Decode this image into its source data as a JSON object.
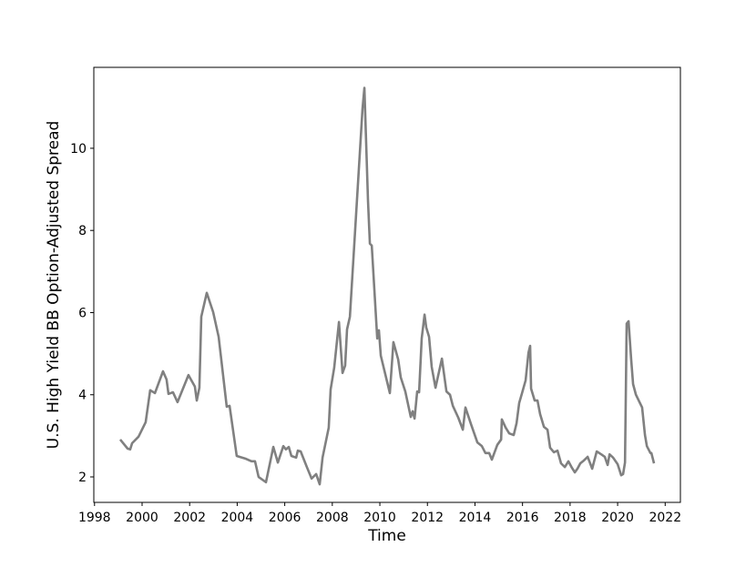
{
  "chart_data": {
    "type": "line",
    "x_label": "Time",
    "y_label": "U.S. High Yield BB Option-Adjusted Spread",
    "color": "#808080",
    "xlim": [
      1997.97,
      2022.64
    ],
    "ylim": [
      1.38,
      11.97
    ],
    "xticks": [
      1998,
      2000,
      2002,
      2004,
      2006,
      2008,
      2010,
      2012,
      2014,
      2016,
      2018,
      2020,
      2022
    ],
    "yticks": [
      2,
      4,
      6,
      8,
      10
    ],
    "x": [
      1999.08,
      1999.39,
      1999.5,
      1999.58,
      1999.85,
      2000.15,
      2000.34,
      2000.54,
      2000.88,
      2001.03,
      2001.11,
      2001.3,
      2001.49,
      2001.95,
      2002.22,
      2002.3,
      2002.41,
      2002.49,
      2002.72,
      2002.99,
      2003.22,
      2003.56,
      2003.68,
      2003.98,
      2004.37,
      2004.6,
      2004.75,
      2004.9,
      2005.21,
      2005.52,
      2005.71,
      2005.94,
      2006.05,
      2006.17,
      2006.28,
      2006.48,
      2006.55,
      2006.67,
      2006.93,
      2007.13,
      2007.32,
      2007.47,
      2007.59,
      2007.85,
      2007.93,
      2008.08,
      2008.28,
      2008.43,
      2008.54,
      2008.62,
      2008.74,
      2009.27,
      2009.35,
      2009.5,
      2009.58,
      2009.66,
      2009.89,
      2009.96,
      2010.04,
      2010.42,
      2010.57,
      2010.77,
      2010.88,
      2011.07,
      2011.3,
      2011.38,
      2011.46,
      2011.57,
      2011.65,
      2011.76,
      2011.88,
      2011.95,
      2012.07,
      2012.18,
      2012.34,
      2012.45,
      2012.61,
      2012.8,
      2012.95,
      2013.07,
      2013.3,
      2013.49,
      2013.6,
      2013.83,
      2013.95,
      2014.1,
      2014.29,
      2014.44,
      2014.6,
      2014.71,
      2014.94,
      2015.1,
      2015.13,
      2015.29,
      2015.44,
      2015.63,
      2015.75,
      2015.86,
      2015.98,
      2016.13,
      2016.25,
      2016.32,
      2016.36,
      2016.51,
      2016.63,
      2016.74,
      2016.9,
      2017.05,
      2017.16,
      2017.32,
      2017.47,
      2017.62,
      2017.78,
      2017.93,
      2018.08,
      2018.2,
      2018.31,
      2018.43,
      2018.58,
      2018.74,
      2018.93,
      2019.12,
      2019.31,
      2019.46,
      2019.58,
      2019.66,
      2019.81,
      2020.0,
      2020.15,
      2020.23,
      2020.31,
      2020.38,
      2020.46,
      2020.57,
      2020.65,
      2020.77,
      2020.92,
      2021.03,
      2021.15,
      2021.23,
      2021.38,
      2021.42,
      2021.53
    ],
    "values": [
      2.91,
      2.69,
      2.67,
      2.82,
      2.98,
      3.33,
      4.11,
      4.04,
      4.57,
      4.37,
      4.02,
      4.06,
      3.82,
      4.48,
      4.2,
      3.86,
      4.17,
      5.9,
      6.48,
      6.01,
      5.41,
      3.71,
      3.73,
      2.51,
      2.44,
      2.38,
      2.38,
      2.0,
      1.87,
      2.73,
      2.35,
      2.75,
      2.67,
      2.73,
      2.51,
      2.47,
      2.64,
      2.62,
      2.24,
      1.96,
      2.07,
      1.82,
      2.47,
      3.2,
      4.13,
      4.66,
      5.77,
      4.53,
      4.71,
      5.59,
      5.9,
      10.96,
      11.47,
      8.74,
      7.68,
      7.63,
      5.37,
      5.57,
      4.95,
      4.04,
      5.28,
      4.86,
      4.42,
      4.08,
      3.46,
      3.6,
      3.42,
      4.08,
      4.06,
      5.37,
      5.95,
      5.64,
      5.41,
      4.68,
      4.17,
      4.46,
      4.88,
      4.08,
      4.0,
      3.73,
      3.44,
      3.15,
      3.69,
      3.29,
      3.09,
      2.84,
      2.75,
      2.58,
      2.58,
      2.42,
      2.78,
      2.91,
      3.4,
      3.2,
      3.06,
      3.02,
      3.31,
      3.8,
      4.04,
      4.35,
      5.02,
      5.19,
      4.15,
      3.86,
      3.86,
      3.53,
      3.22,
      3.15,
      2.71,
      2.6,
      2.64,
      2.33,
      2.24,
      2.38,
      2.22,
      2.11,
      2.2,
      2.33,
      2.4,
      2.49,
      2.2,
      2.62,
      2.55,
      2.49,
      2.29,
      2.55,
      2.47,
      2.31,
      2.04,
      2.07,
      2.35,
      5.73,
      5.79,
      4.86,
      4.26,
      4.0,
      3.82,
      3.69,
      3.02,
      2.75,
      2.58,
      2.58,
      2.33
    ]
  }
}
